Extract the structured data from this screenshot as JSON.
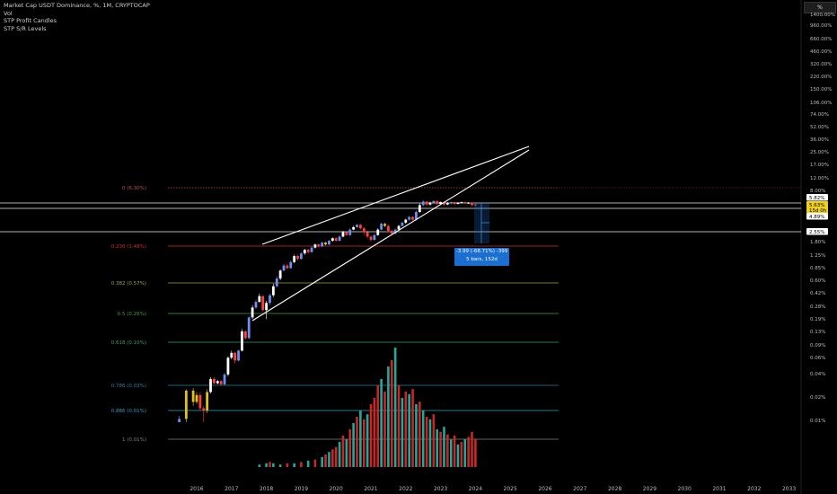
{
  "legend": {
    "title": "Market Cap USDT Dominance, %, 1M, CRYPTOCAP",
    "indicators": [
      "Vol",
      "STP Profit Candles",
      "STP S/R Levels"
    ]
  },
  "scale_label": "%",
  "colors": {
    "background": "#000000",
    "fib_line": "#7a2a2a",
    "fib_0": "#c05050",
    "fib_236": "#d03030",
    "fib_382": "#a0a040",
    "fib_5": "#40a040",
    "fib_618": "#30a070",
    "fib_786": "#3080a0",
    "fib_886": "#30a0c0",
    "fib_1": "#808080",
    "candle_up_blue": "#6e8ef0",
    "candle_up_white": "#ffffff",
    "candle_down_red": "#ff4040",
    "candle_yellow": "#e0c020",
    "vol_up": "#26a69a",
    "vol_down": "#c62828",
    "trendline": "#ffffff",
    "measure": "#1a6fd0"
  },
  "measure": {
    "line1": "-3.99 (-68.71%) -399",
    "line2": "5 bars, 152d"
  },
  "chart_data": {
    "type": "candlestick",
    "title": "Market Cap USDT Dominance, %, 1M, CRYPTOCAP",
    "y_scale": "log",
    "y_ticks": [
      "1400.00%",
      "960.00%",
      "660.00%",
      "460.00%",
      "320.00%",
      "220.00%",
      "150.00%",
      "106.00%",
      "74.00%",
      "52.00%",
      "36.00%",
      "25.00%",
      "17.00%",
      "12.00%",
      "8.00%",
      "1.80%",
      "1.25%",
      "0.85%",
      "0.60%",
      "0.42%",
      "0.28%",
      "0.19%",
      "0.13%",
      "0.09%",
      "0.06%",
      "0.04%",
      "0.02%",
      "0.01%"
    ],
    "x_ticks": [
      "2016",
      "2017",
      "2018",
      "2019",
      "2020",
      "2021",
      "2022",
      "2023",
      "2024",
      "2025",
      "2026",
      "2027",
      "2028",
      "2029",
      "2030",
      "2031",
      "2032",
      "2033"
    ],
    "price_labels": [
      {
        "text": "5.82%",
        "style": "white"
      },
      {
        "text": "5.63%",
        "style": "yellow"
      },
      {
        "text": "15d 0h",
        "style": "yellow"
      },
      {
        "text": "4.89%",
        "style": "white"
      },
      {
        "text": "2.55%",
        "style": "white"
      }
    ],
    "fib_levels": [
      {
        "label": "0 (6.30%)",
        "value": 6.3
      },
      {
        "label": "0.236 (1.48%)",
        "value": 1.48
      },
      {
        "label": "0.382 (0.57%)",
        "value": 0.57
      },
      {
        "label": "0.5 (0.26%)",
        "value": 0.26
      },
      {
        "label": "0.618 (0.10%)",
        "value": 0.1
      },
      {
        "label": "0.786 (0.03%)",
        "value": 0.03
      },
      {
        "label": "0.886 (0.01%)",
        "value": 0.01
      },
      {
        "label": "1 (0.01%)",
        "value": 0.01
      }
    ],
    "trendlines": "rising wedge from 2018 to 2025",
    "candles": [
      [
        2015.5,
        0.01,
        0.011,
        0.01,
        0.012,
        "b"
      ],
      [
        2015.7,
        0.011,
        0.025,
        0.01,
        0.026,
        "y"
      ],
      [
        2015.9,
        0.025,
        0.018,
        0.016,
        0.027,
        "y"
      ],
      [
        2016.0,
        0.018,
        0.022,
        0.017,
        0.024,
        "y"
      ],
      [
        2016.1,
        0.022,
        0.015,
        0.014,
        0.024,
        "r"
      ],
      [
        2016.2,
        0.015,
        0.014,
        0.01,
        0.016,
        "r"
      ],
      [
        2016.3,
        0.014,
        0.024,
        0.013,
        0.026,
        "y"
      ],
      [
        2016.4,
        0.024,
        0.035,
        0.023,
        0.037,
        "w"
      ],
      [
        2016.5,
        0.035,
        0.031,
        0.03,
        0.037,
        "r"
      ],
      [
        2016.6,
        0.031,
        0.033,
        0.03,
        0.034,
        "w"
      ],
      [
        2016.7,
        0.033,
        0.03,
        0.029,
        0.034,
        "r"
      ],
      [
        2016.8,
        0.03,
        0.04,
        0.029,
        0.042,
        "b"
      ],
      [
        2016.9,
        0.04,
        0.065,
        0.038,
        0.068,
        "w"
      ],
      [
        2017.0,
        0.065,
        0.075,
        0.062,
        0.08,
        "w"
      ],
      [
        2017.1,
        0.075,
        0.06,
        0.055,
        0.077,
        "r"
      ],
      [
        2017.2,
        0.06,
        0.08,
        0.058,
        0.082,
        "b"
      ],
      [
        2017.3,
        0.08,
        0.14,
        0.078,
        0.15,
        "w"
      ],
      [
        2017.4,
        0.14,
        0.115,
        0.11,
        0.145,
        "r"
      ],
      [
        2017.5,
        0.115,
        0.21,
        0.112,
        0.22,
        "b"
      ],
      [
        2017.6,
        0.21,
        0.28,
        0.2,
        0.3,
        "w"
      ],
      [
        2017.7,
        0.28,
        0.33,
        0.27,
        0.35,
        "b"
      ],
      [
        2017.8,
        0.33,
        0.39,
        0.32,
        0.42,
        "w"
      ],
      [
        2017.9,
        0.39,
        0.26,
        0.25,
        0.4,
        "r"
      ],
      [
        2018.0,
        0.26,
        0.32,
        0.2,
        0.34,
        "w"
      ],
      [
        2018.1,
        0.32,
        0.4,
        0.3,
        0.42,
        "b"
      ],
      [
        2018.2,
        0.4,
        0.52,
        0.38,
        0.56,
        "w"
      ],
      [
        2018.3,
        0.52,
        0.65,
        0.5,
        0.7,
        "b"
      ],
      [
        2018.4,
        0.65,
        0.82,
        0.62,
        0.85,
        "w"
      ],
      [
        2018.5,
        0.82,
        0.95,
        0.8,
        1.0,
        "b"
      ],
      [
        2018.6,
        0.95,
        0.88,
        0.85,
        1.0,
        "r"
      ],
      [
        2018.7,
        0.88,
        1.05,
        0.86,
        1.1,
        "b"
      ],
      [
        2018.8,
        1.05,
        1.25,
        1.02,
        1.3,
        "w"
      ],
      [
        2018.9,
        1.25,
        1.15,
        1.1,
        1.3,
        "r"
      ],
      [
        2019.0,
        1.15,
        1.35,
        1.12,
        1.4,
        "b"
      ],
      [
        2019.1,
        1.35,
        1.5,
        1.3,
        1.55,
        "w"
      ],
      [
        2019.2,
        1.5,
        1.4,
        1.35,
        1.55,
        "r"
      ],
      [
        2019.3,
        1.4,
        1.6,
        1.38,
        1.65,
        "b"
      ],
      [
        2019.4,
        1.6,
        1.75,
        1.55,
        1.8,
        "w"
      ],
      [
        2019.5,
        1.75,
        1.65,
        1.6,
        1.8,
        "r"
      ],
      [
        2019.6,
        1.65,
        1.85,
        1.62,
        1.9,
        "b"
      ],
      [
        2019.7,
        1.85,
        1.75,
        1.7,
        1.9,
        "y"
      ],
      [
        2019.8,
        1.75,
        1.95,
        1.72,
        2.0,
        "b"
      ],
      [
        2019.9,
        1.95,
        2.1,
        1.9,
        2.15,
        "w"
      ],
      [
        2020.0,
        2.1,
        1.95,
        1.9,
        2.15,
        "r"
      ],
      [
        2020.1,
        1.95,
        2.2,
        1.92,
        2.3,
        "b"
      ],
      [
        2020.2,
        2.2,
        2.5,
        2.15,
        2.6,
        "w"
      ],
      [
        2020.3,
        2.5,
        2.3,
        2.25,
        2.55,
        "r"
      ],
      [
        2020.4,
        2.3,
        2.7,
        2.25,
        2.8,
        "b"
      ],
      [
        2020.5,
        2.7,
        2.9,
        2.65,
        3.0,
        "w"
      ],
      [
        2020.6,
        2.9,
        3.1,
        2.85,
        3.2,
        "b"
      ],
      [
        2020.7,
        3.1,
        2.8,
        2.7,
        3.2,
        "r"
      ],
      [
        2020.8,
        2.8,
        2.5,
        2.3,
        2.9,
        "r"
      ],
      [
        2020.9,
        2.5,
        2.2,
        2.1,
        2.6,
        "r"
      ],
      [
        2021.0,
        2.2,
        2.0,
        1.9,
        2.3,
        "r"
      ],
      [
        2021.1,
        2.0,
        2.3,
        1.95,
        2.4,
        "b"
      ],
      [
        2021.2,
        2.3,
        2.7,
        2.25,
        2.8,
        "w"
      ],
      [
        2021.3,
        2.7,
        3.2,
        2.65,
        3.3,
        "b"
      ],
      [
        2021.4,
        3.2,
        3.0,
        2.9,
        3.3,
        "y"
      ],
      [
        2021.5,
        3.0,
        2.6,
        2.5,
        3.1,
        "r"
      ],
      [
        2021.6,
        2.6,
        2.4,
        2.3,
        2.7,
        "r"
      ],
      [
        2021.7,
        2.4,
        2.7,
        2.35,
        2.8,
        "b"
      ],
      [
        2021.8,
        2.7,
        3.0,
        2.65,
        3.1,
        "w"
      ],
      [
        2021.9,
        3.0,
        3.3,
        2.95,
        3.4,
        "b"
      ],
      [
        2022.0,
        3.3,
        3.6,
        3.2,
        3.7,
        "w"
      ],
      [
        2022.1,
        3.6,
        3.9,
        3.5,
        4.0,
        "b"
      ],
      [
        2022.2,
        3.9,
        3.6,
        3.5,
        4.0,
        "r"
      ],
      [
        2022.3,
        3.6,
        4.5,
        3.5,
        4.7,
        "b"
      ],
      [
        2022.4,
        4.5,
        5.5,
        4.4,
        5.8,
        "w"
      ],
      [
        2022.5,
        5.5,
        6.1,
        5.3,
        6.3,
        "b"
      ],
      [
        2022.6,
        6.1,
        5.6,
        5.4,
        6.2,
        "r"
      ],
      [
        2022.7,
        5.6,
        5.9,
        5.4,
        6.1,
        "w"
      ],
      [
        2022.8,
        5.9,
        6.2,
        5.7,
        6.3,
        "b"
      ],
      [
        2022.9,
        6.2,
        5.7,
        5.5,
        6.3,
        "r"
      ],
      [
        2023.0,
        5.7,
        6.0,
        5.5,
        6.1,
        "w"
      ],
      [
        2023.1,
        6.0,
        5.6,
        5.4,
        6.1,
        "r"
      ],
      [
        2023.2,
        5.6,
        5.8,
        5.5,
        6.0,
        "w"
      ],
      [
        2023.3,
        5.8,
        6.0,
        5.6,
        6.1,
        "b"
      ],
      [
        2023.4,
        6.0,
        5.7,
        5.5,
        6.1,
        "r"
      ],
      [
        2023.5,
        5.7,
        5.9,
        5.6,
        6.0,
        "w"
      ],
      [
        2023.6,
        5.9,
        6.0,
        5.8,
        6.1,
        "w"
      ],
      [
        2023.7,
        6.0,
        5.8,
        5.7,
        6.1,
        "r"
      ],
      [
        2023.8,
        5.8,
        5.9,
        5.7,
        6.0,
        "w"
      ],
      [
        2023.9,
        5.9,
        5.5,
        5.3,
        6.0,
        "r"
      ],
      [
        2024.0,
        5.5,
        5.63,
        5.3,
        5.7,
        "r"
      ]
    ],
    "volume": [
      [
        2017.8,
        0.02,
        "u"
      ],
      [
        2018.0,
        0.03,
        "u"
      ],
      [
        2018.1,
        0.04,
        "d"
      ],
      [
        2018.2,
        0.03,
        "u"
      ],
      [
        2018.4,
        0.02,
        "u"
      ],
      [
        2018.6,
        0.03,
        "d"
      ],
      [
        2018.8,
        0.03,
        "u"
      ],
      [
        2019.0,
        0.04,
        "d"
      ],
      [
        2019.2,
        0.05,
        "u"
      ],
      [
        2019.4,
        0.06,
        "d"
      ],
      [
        2019.6,
        0.08,
        "u"
      ],
      [
        2019.7,
        0.1,
        "d"
      ],
      [
        2019.8,
        0.12,
        "u"
      ],
      [
        2019.9,
        0.14,
        "d"
      ],
      [
        2020.0,
        0.16,
        "d"
      ],
      [
        2020.1,
        0.2,
        "u"
      ],
      [
        2020.2,
        0.25,
        "d"
      ],
      [
        2020.3,
        0.22,
        "u"
      ],
      [
        2020.4,
        0.3,
        "d"
      ],
      [
        2020.5,
        0.35,
        "u"
      ],
      [
        2020.6,
        0.4,
        "d"
      ],
      [
        2020.7,
        0.45,
        "u"
      ],
      [
        2020.8,
        0.38,
        "d"
      ],
      [
        2020.9,
        0.42,
        "u"
      ],
      [
        2021.0,
        0.5,
        "d"
      ],
      [
        2021.1,
        0.55,
        "d"
      ],
      [
        2021.2,
        0.65,
        "d"
      ],
      [
        2021.3,
        0.7,
        "u"
      ],
      [
        2021.4,
        0.6,
        "d"
      ],
      [
        2021.5,
        0.8,
        "u"
      ],
      [
        2021.6,
        0.85,
        "d"
      ],
      [
        2021.7,
        0.95,
        "u"
      ],
      [
        2021.8,
        0.65,
        "d"
      ],
      [
        2021.9,
        0.55,
        "u"
      ],
      [
        2022.0,
        0.6,
        "d"
      ],
      [
        2022.1,
        0.58,
        "u"
      ],
      [
        2022.2,
        0.62,
        "d"
      ],
      [
        2022.3,
        0.5,
        "u"
      ],
      [
        2022.4,
        0.52,
        "d"
      ],
      [
        2022.5,
        0.45,
        "u"
      ],
      [
        2022.6,
        0.4,
        "d"
      ],
      [
        2022.7,
        0.38,
        "u"
      ],
      [
        2022.8,
        0.42,
        "d"
      ],
      [
        2022.9,
        0.3,
        "u"
      ],
      [
        2023.0,
        0.28,
        "d"
      ],
      [
        2023.1,
        0.32,
        "u"
      ],
      [
        2023.2,
        0.26,
        "d"
      ],
      [
        2023.3,
        0.22,
        "u"
      ],
      [
        2023.4,
        0.25,
        "d"
      ],
      [
        2023.5,
        0.18,
        "u"
      ],
      [
        2023.6,
        0.2,
        "d"
      ],
      [
        2023.7,
        0.22,
        "u"
      ],
      [
        2023.8,
        0.24,
        "d"
      ],
      [
        2023.9,
        0.28,
        "d"
      ],
      [
        2024.0,
        0.22,
        "d"
      ]
    ]
  }
}
